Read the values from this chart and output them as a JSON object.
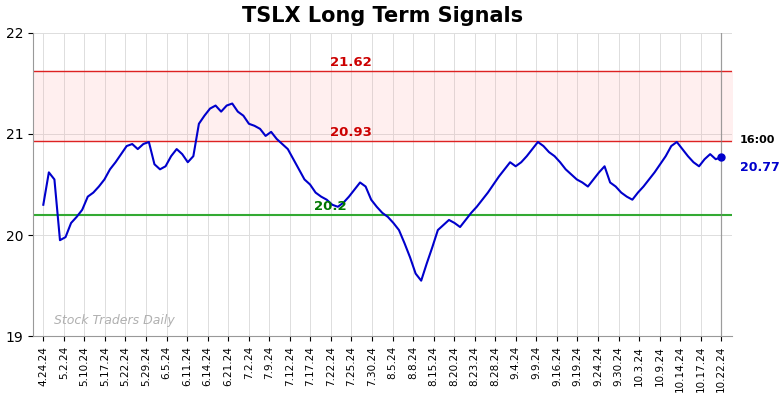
{
  "title": "TSLX Long Term Signals",
  "title_fontsize": 15,
  "title_fontweight": "bold",
  "xlabels": [
    "4.24.24",
    "5.2.24",
    "5.10.24",
    "5.17.24",
    "5.22.24",
    "5.29.24",
    "6.5.24",
    "6.11.24",
    "6.14.24",
    "6.21.24",
    "7.2.24",
    "7.9.24",
    "7.12.24",
    "7.17.24",
    "7.22.24",
    "7.25.24",
    "7.30.24",
    "8.5.24",
    "8.8.24",
    "8.15.24",
    "8.20.24",
    "8.23.24",
    "8.28.24",
    "9.4.24",
    "9.9.24",
    "9.16.24",
    "9.19.24",
    "9.24.24",
    "9.30.24",
    "10.3.24",
    "10.9.24",
    "10.14.24",
    "10.17.24",
    "10.22.24"
  ],
  "dense_prices": [
    20.3,
    20.62,
    20.55,
    19.95,
    19.98,
    20.12,
    20.18,
    20.25,
    20.38,
    20.42,
    20.48,
    20.55,
    20.65,
    20.72,
    20.8,
    20.88,
    20.9,
    20.85,
    20.9,
    20.92,
    20.7,
    20.65,
    20.68,
    20.78,
    20.85,
    20.8,
    20.72,
    20.78,
    21.1,
    21.18,
    21.25,
    21.28,
    21.22,
    21.28,
    21.3,
    21.22,
    21.18,
    21.1,
    21.08,
    21.05,
    20.98,
    21.02,
    20.95,
    20.9,
    20.85,
    20.75,
    20.65,
    20.55,
    20.5,
    20.42,
    20.38,
    20.35,
    20.3,
    20.28,
    20.32,
    20.38,
    20.45,
    20.52,
    20.48,
    20.35,
    20.28,
    20.22,
    20.18,
    20.12,
    20.05,
    19.92,
    19.78,
    19.62,
    19.55,
    19.72,
    19.88,
    20.05,
    20.1,
    20.15,
    20.12,
    20.08,
    20.15,
    20.22,
    20.28,
    20.35,
    20.42,
    20.5,
    20.58,
    20.65,
    20.72,
    20.68,
    20.72,
    20.78,
    20.85,
    20.92,
    20.88,
    20.82,
    20.78,
    20.72,
    20.65,
    20.6,
    20.55,
    20.52,
    20.48,
    20.55,
    20.62,
    20.68,
    20.52,
    20.48,
    20.42,
    20.38,
    20.35,
    20.42,
    20.48,
    20.55,
    20.62,
    20.7,
    20.78,
    20.88,
    20.92,
    20.85,
    20.78,
    20.72,
    20.68,
    20.75,
    20.8,
    20.75,
    20.77
  ],
  "line_color": "#0000cc",
  "hline_red1": 21.62,
  "hline_red2": 20.93,
  "hline_green": 20.2,
  "hline_red1_color": "#dd2222",
  "hline_red2_color": "#dd2222",
  "hline_green_color": "#33aa33",
  "hline_fill_alpha": 0.18,
  "hline_fill_color": "#ffaaaa",
  "annotation_21_62_label": "21.62",
  "annotation_20_93_label": "20.93",
  "annotation_20_2_label": "20.2",
  "annotation_color_red": "#cc0000",
  "annotation_color_green": "#007700",
  "last_price_label": "16:00",
  "last_price_value": "20.77",
  "last_price_color": "#0000cc",
  "watermark": "Stock Traders Daily",
  "watermark_color": "#b0b0b0",
  "ylim": [
    19.0,
    22.0
  ],
  "yticks": [
    19,
    20,
    21,
    22
  ],
  "bg_color": "#ffffff",
  "grid_color": "#dddddd",
  "spine_color": "#999999"
}
